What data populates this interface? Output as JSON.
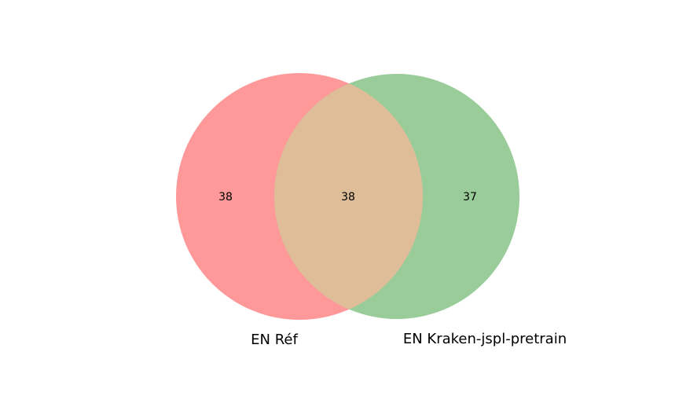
{
  "chart_data": {
    "type": "venn",
    "sets": [
      {
        "name": "EN Réf",
        "only_count": "38",
        "color": "#ff9999"
      },
      {
        "name": "EN Kraken-jspl-pretrain",
        "only_count": "37",
        "color": "#99cc99"
      }
    ],
    "intersection": {
      "count": "38",
      "color": "#e0bd99"
    }
  }
}
